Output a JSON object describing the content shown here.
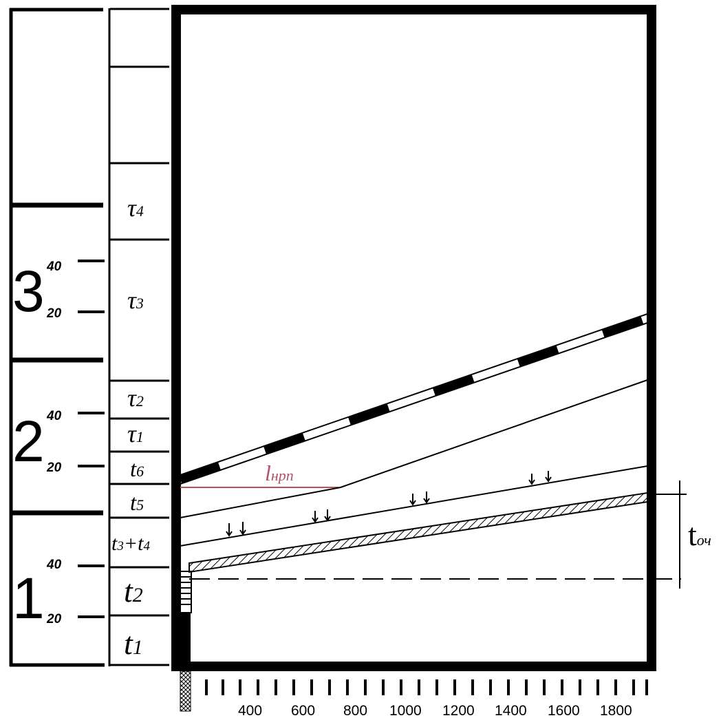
{
  "periods": [
    {
      "number": "1",
      "tick_labels": [
        "20",
        "40"
      ]
    },
    {
      "number": "2",
      "tick_labels": [
        "20",
        "40"
      ]
    },
    {
      "number": "3",
      "tick_labels": [
        "20",
        "40"
      ]
    }
  ],
  "time_cells": [
    {
      "key": "t1",
      "base": "t",
      "sub": "1"
    },
    {
      "key": "t2",
      "base": "t",
      "sub": "2"
    },
    {
      "key": "t3t4",
      "base": "t3+t4",
      "sub": ""
    },
    {
      "key": "t5",
      "base": "t",
      "sub": "5"
    },
    {
      "key": "t6",
      "base": "t",
      "sub": "6"
    },
    {
      "key": "tau1",
      "base": "τ",
      "sub": "1"
    },
    {
      "key": "tau2",
      "base": "τ",
      "sub": "2"
    },
    {
      "key": "tau3",
      "base": "τ",
      "sub": "3"
    },
    {
      "key": "tau4",
      "base": "τ",
      "sub": "4"
    }
  ],
  "labels": {
    "l_nrp": {
      "base": "l",
      "sub": "нрп"
    },
    "t_och": {
      "base": "t",
      "sub": "оч"
    },
    "t3t4": {
      "base_a": "t",
      "sub_a": "3",
      "plus": "+",
      "base_b": "t",
      "sub_b": "4"
    }
  },
  "x_axis": {
    "tick_labels": [
      "400",
      "600",
      "800",
      "1000",
      "1200",
      "1400",
      "1600",
      "1800"
    ]
  },
  "colors": {
    "ink": "#000000",
    "l_nrp_line": "#c0504d",
    "l_nrp_text": "#b5526a"
  }
}
